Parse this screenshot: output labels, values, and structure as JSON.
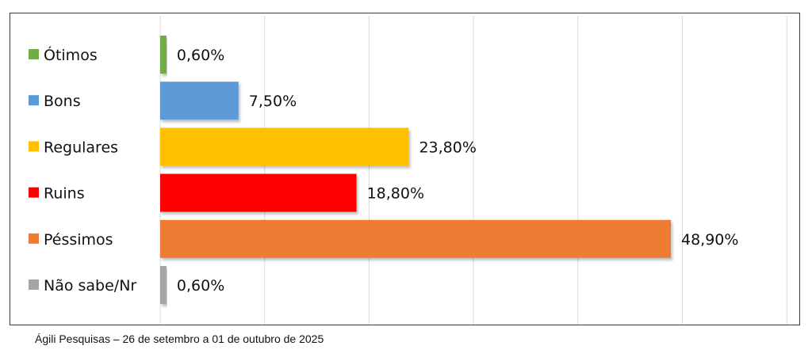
{
  "chart_data": {
    "type": "bar",
    "orientation": "horizontal",
    "categories": [
      "Ótimos",
      "Bons",
      "Regulares",
      "Ruins",
      "Péssimos",
      "Não sabe/Nr"
    ],
    "values": [
      0.6,
      7.5,
      23.8,
      18.8,
      48.9,
      0.6
    ],
    "value_labels": [
      "0,60%",
      "7,50%",
      "23,80%",
      "18,80%",
      "48,90%",
      "0,60%"
    ],
    "colors": [
      "#70ad47",
      "#5b9bd5",
      "#ffc000",
      "#ff0000",
      "#ed7d31",
      "#a5a5a5"
    ],
    "xlim": [
      0,
      60
    ],
    "grid": true,
    "legend": "left"
  },
  "source": "Ágili Pesquisas – 26 de setembro a 01 de outubro de 2025"
}
